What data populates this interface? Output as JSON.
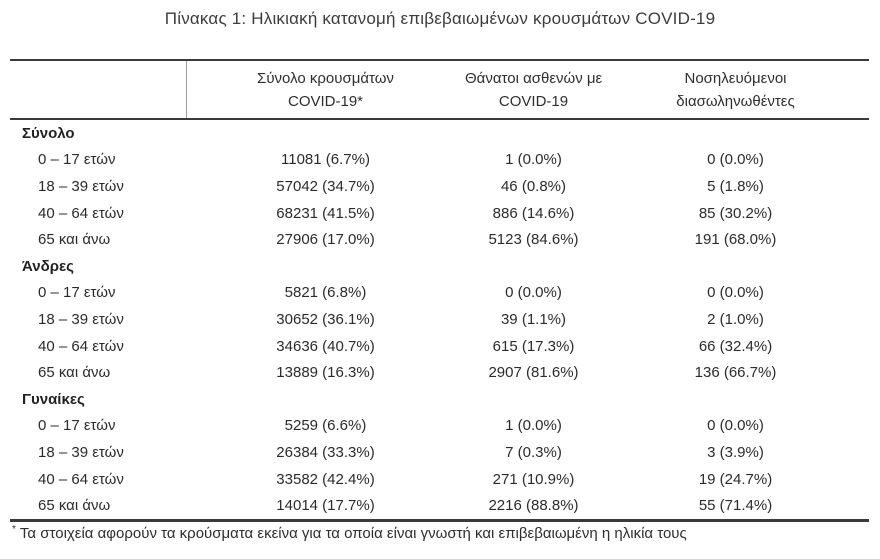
{
  "title": "Πίνακας 1: Ηλικιακή κατανομή επιβεβαιωμένων κρουσμάτων COVID-19",
  "header": {
    "cases": [
      "Σύνολο κρουσμάτων",
      "COVID-19*"
    ],
    "deaths": [
      "Θάνατοι ασθενών με",
      "COVID-19"
    ],
    "intubated": [
      "Νοσηλευόμενοι",
      "διασωληνωθέντες"
    ]
  },
  "sections": [
    {
      "label": "Σύνολο",
      "rows": [
        {
          "age": "0 – 17 ετών",
          "cases": "11081 (6.7%)",
          "deaths": "1 (0.0%)",
          "intubated": "0 (0.0%)"
        },
        {
          "age": "18 – 39 ετών",
          "cases": "57042 (34.7%)",
          "deaths": "46 (0.8%)",
          "intubated": "5 (1.8%)"
        },
        {
          "age": "40 – 64 ετών",
          "cases": "68231 (41.5%)",
          "deaths": "886 (14.6%)",
          "intubated": "85 (30.2%)"
        },
        {
          "age": "65 και άνω",
          "cases": "27906 (17.0%)",
          "deaths": "5123 (84.6%)",
          "intubated": "191 (68.0%)"
        }
      ]
    },
    {
      "label": "Άνδρες",
      "rows": [
        {
          "age": "0 – 17 ετών",
          "cases": "5821 (6.8%)",
          "deaths": "0 (0.0%)",
          "intubated": "0 (0.0%)"
        },
        {
          "age": "18 – 39 ετών",
          "cases": "30652 (36.1%)",
          "deaths": "39 (1.1%)",
          "intubated": "2 (1.0%)"
        },
        {
          "age": "40 – 64 ετών",
          "cases": "34636 (40.7%)",
          "deaths": "615 (17.3%)",
          "intubated": "66 (32.4%)"
        },
        {
          "age": "65 και άνω",
          "cases": "13889 (16.3%)",
          "deaths": "2907 (81.6%)",
          "intubated": "136 (66.7%)"
        }
      ]
    },
    {
      "label": "Γυναίκες",
      "rows": [
        {
          "age": "0 – 17 ετών",
          "cases": "5259 (6.6%)",
          "deaths": "1 (0.0%)",
          "intubated": "0 (0.0%)"
        },
        {
          "age": "18 – 39 ετών",
          "cases": "26384 (33.3%)",
          "deaths": "7 (0.3%)",
          "intubated": "3 (3.9%)"
        },
        {
          "age": "40 – 64 ετών",
          "cases": "33582 (42.4%)",
          "deaths": "271 (10.9%)",
          "intubated": "19 (24.7%)"
        },
        {
          "age": "65 και άνω",
          "cases": "14014 (17.7%)",
          "deaths": "2216 (88.8%)",
          "intubated": "55 (71.4%)"
        }
      ]
    }
  ],
  "footnote": {
    "marker": "*",
    "text": "Τα στοιχεία αφορούν τα κρούσματα εκείνα για τα οποία είναι γνωστή και επιβεβαιωμένη η ηλικία τους"
  },
  "colors": {
    "rule": "#3a3a3a",
    "text": "#2b2b2b",
    "divider": "#9c9c9c",
    "background": "#ffffff"
  }
}
